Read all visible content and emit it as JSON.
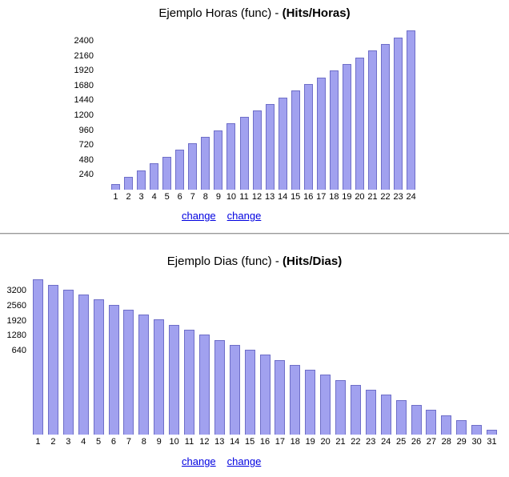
{
  "colors": {
    "bar_fill": "#a1a1ef",
    "bar_border": "#6e6ec8",
    "link": "#0000e0",
    "divider_dark": "#999999",
    "divider_light": "#d9d9d9",
    "text": "#000000",
    "background": "#ffffff"
  },
  "links": [
    [
      "change",
      "change"
    ],
    [
      "change",
      "change"
    ]
  ],
  "chart_data": [
    {
      "type": "bar",
      "title": "Ejemplo Horas (func) - (Hits/Horas)",
      "title_prefix": "Ejemplo Horas (func) - ",
      "title_bold": "(Hits/Horas)",
      "xlabel": "",
      "ylabel": "",
      "grid": false,
      "legend": false,
      "ylim": [
        0,
        2600
      ],
      "y_ticks": [
        240,
        480,
        720,
        960,
        1200,
        1440,
        1680,
        1920,
        2160,
        2400
      ],
      "categories": [
        "1",
        "2",
        "3",
        "4",
        "5",
        "6",
        "7",
        "8",
        "9",
        "10",
        "11",
        "12",
        "13",
        "14",
        "15",
        "16",
        "17",
        "18",
        "19",
        "20",
        "21",
        "22",
        "23",
        "24"
      ],
      "values": [
        95,
        205,
        315,
        425,
        535,
        645,
        750,
        855,
        960,
        1065,
        1170,
        1280,
        1385,
        1490,
        1595,
        1700,
        1810,
        1920,
        2025,
        2130,
        2240,
        2345,
        2455,
        2565
      ]
    },
    {
      "type": "bar",
      "title": "Ejemplo Dias (func) - (Hits/Dias)",
      "title_prefix": "Ejemplo Dias (func) - ",
      "title_bold": "(Hits/Dias)",
      "xlabel": "",
      "ylabel": "",
      "grid": false,
      "legend": false,
      "ylim": [
        0,
        3400
      ],
      "y_ticks": [
        640,
        1280,
        1920,
        2560,
        3200
      ],
      "categories": [
        "1",
        "2",
        "3",
        "4",
        "5",
        "6",
        "7",
        "8",
        "9",
        "10",
        "11",
        "12",
        "13",
        "14",
        "15",
        "16",
        "17",
        "18",
        "19",
        "20",
        "21",
        "22",
        "23",
        "24",
        "25",
        "26",
        "27",
        "28",
        "29",
        "30",
        "31"
      ],
      "values": [
        3400,
        3290,
        3180,
        3070,
        2960,
        2850,
        2740,
        2630,
        2520,
        2410,
        2300,
        2190,
        2080,
        1970,
        1860,
        1750,
        1640,
        1530,
        1420,
        1310,
        1200,
        1090,
        980,
        870,
        760,
        650,
        540,
        430,
        320,
        210,
        100
      ]
    }
  ]
}
